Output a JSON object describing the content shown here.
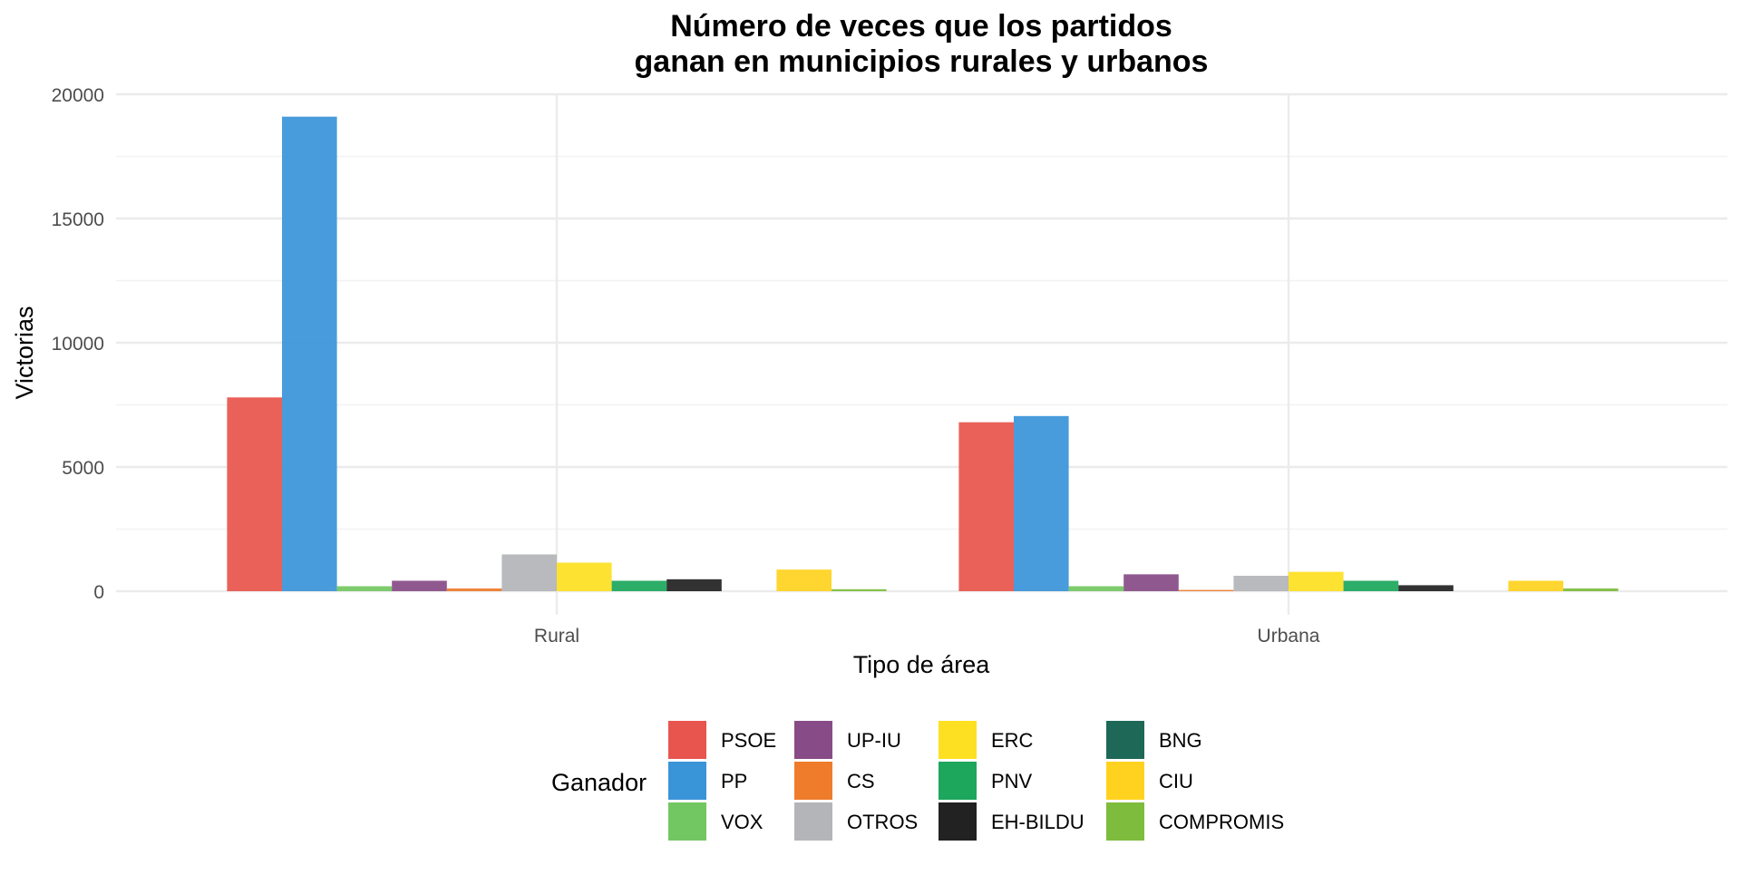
{
  "chart_data": {
    "type": "bar",
    "title_lines": [
      "Número de veces que los partidos",
      "ganan en municipios rurales y urbanos"
    ],
    "xlabel": "Tipo de área",
    "ylabel": "Victorias",
    "categories": [
      "Rural",
      "Urbana"
    ],
    "ylim": [
      0,
      20000
    ],
    "y_ticks": [
      0,
      5000,
      10000,
      15000,
      20000
    ],
    "y_tick_labels": [
      "0",
      "5000",
      "10000",
      "15000",
      "20000"
    ],
    "grid": true,
    "legend": {
      "title": "Ganador",
      "position": "bottom"
    },
    "series": [
      {
        "name": "PSOE",
        "color": "#E8554E",
        "values": [
          7800,
          6800
        ]
      },
      {
        "name": "PP",
        "color": "#3A94D8",
        "values": [
          19100,
          7050
        ]
      },
      {
        "name": "VOX",
        "color": "#73C762",
        "values": [
          200,
          200
        ]
      },
      {
        "name": "UP-IU",
        "color": "#874C87",
        "values": [
          420,
          680
        ]
      },
      {
        "name": "CS",
        "color": "#EE7C2B",
        "values": [
          110,
          50
        ]
      },
      {
        "name": "OTROS",
        "color": "#B4B5B8",
        "values": [
          1480,
          620
        ]
      },
      {
        "name": "ERC",
        "color": "#FDE022",
        "values": [
          1150,
          780
        ]
      },
      {
        "name": "PNV",
        "color": "#1CA75C",
        "values": [
          420,
          420
        ]
      },
      {
        "name": "EH-BILDU",
        "color": "#222222",
        "values": [
          480,
          240
        ]
      },
      {
        "name": "BNG",
        "color": "#1E6858",
        "values": [
          0,
          0
        ]
      },
      {
        "name": "CIU",
        "color": "#FFD21F",
        "values": [
          870,
          420
        ]
      },
      {
        "name": "COMPROMIS",
        "color": "#7DBC3C",
        "values": [
          80,
          110
        ]
      }
    ]
  }
}
